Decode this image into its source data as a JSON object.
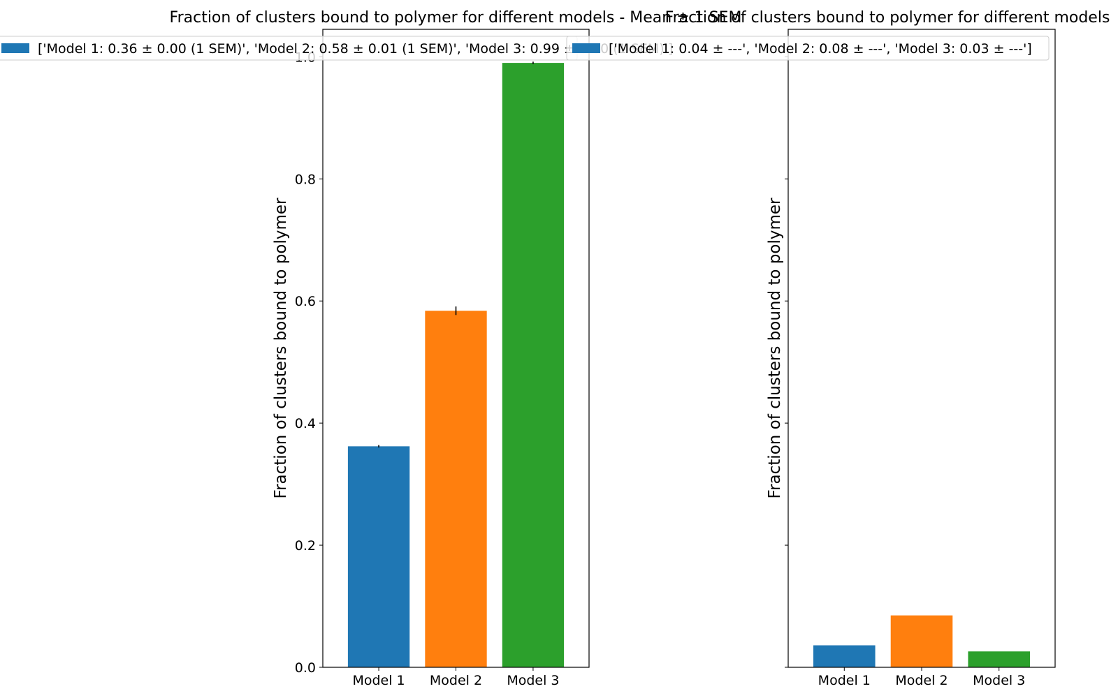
{
  "chart_data": [
    {
      "type": "bar",
      "title": "Fraction of clusters bound to polymer for different models - Mean ± 1 SEM",
      "ylabel": "Fraction of clusters bound to polymer",
      "xlabel": "",
      "categories": [
        "Model 1",
        "Model 2",
        "Model 3"
      ],
      "values": [
        0.362,
        0.584,
        0.99
      ],
      "errors": [
        0.002,
        0.007,
        0.002
      ],
      "colors": [
        "#1f77b4",
        "#ff7f0e",
        "#2ca02c"
      ],
      "ylim": [
        0,
        1.045
      ],
      "yticks": [
        0.0,
        0.2,
        0.4,
        0.6,
        0.8,
        1.0
      ],
      "ytick_labels": [
        "0.0",
        "0.2",
        "0.4",
        "0.6",
        "0.8",
        "1.0"
      ],
      "legend_text": "['Model 1: 0.36 ± 0.00 (1 SEM)', 'Model 2: 0.58 ± 0.01 (1 SEM)', 'Model 3: 0.99 ± 0.00 (1 SEM)']",
      "legend_color": "#1f77b4",
      "legend_position": "top-center",
      "grid": false
    },
    {
      "type": "bar",
      "title": "Fraction of clusters bound to polymer for different models",
      "ylabel": "Fraction of clusters bound to polymer",
      "xlabel": "",
      "categories": [
        "Model 1",
        "Model 2",
        "Model 3"
      ],
      "values": [
        0.036,
        0.085,
        0.026
      ],
      "colors": [
        "#1f77b4",
        "#ff7f0e",
        "#2ca02c"
      ],
      "ylim": [
        0,
        1.045
      ],
      "yticks": [
        0.0,
        0.2,
        0.4,
        0.6,
        0.8,
        1.0
      ],
      "ytick_labels": [],
      "legend_text": "['Model 1: 0.04 ± ---', 'Model 2: 0.08 ± ---', 'Model 3: 0.03 ± ---']",
      "legend_color": "#1f77b4",
      "legend_position": "top-center",
      "grid": false
    }
  ]
}
